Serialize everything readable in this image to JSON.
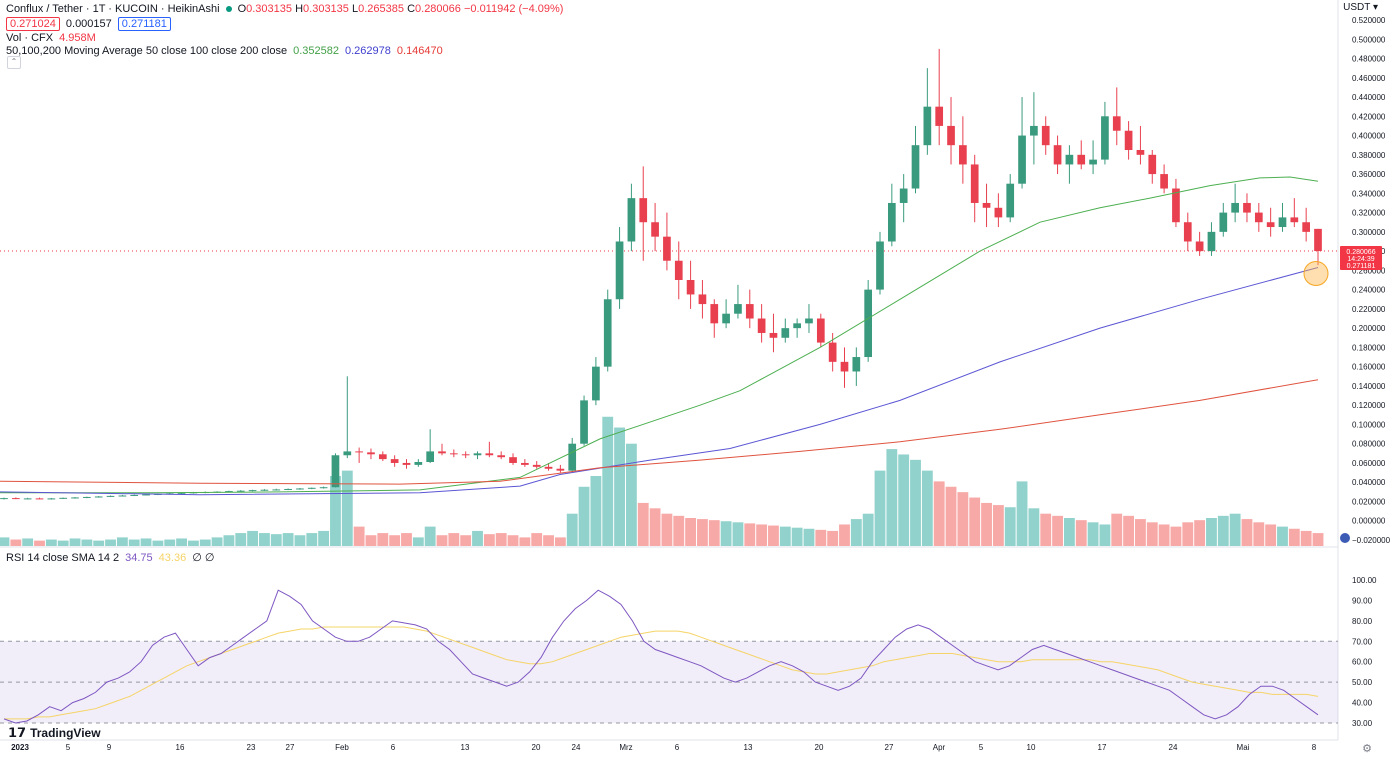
{
  "header": {
    "symbol": "Conflux / Tether · 1T · KUCOIN · HeikinAshi",
    "ohlc": {
      "o_label": "O",
      "o": "0.303135",
      "h_label": "H",
      "h": "0.303135",
      "l_label": "L",
      "l": "0.265385",
      "c_label": "C",
      "c": "0.280066",
      "change": "−0.011942 (−4.09%)"
    },
    "bid": "0.271024",
    "spread": "0.000157",
    "ask": "0.271181",
    "vol_label": "Vol · CFX",
    "vol_value": "4.958M",
    "ma_label": "50,100,200 Moving Average 50 close 100 close 200 close",
    "ma50": "0.352582",
    "ma100": "0.262978",
    "ma200": "0.146470",
    "currency": "USDT"
  },
  "rsi": {
    "label": "RSI 14 close SMA 14 2",
    "rsi_value": "34.75",
    "sma_value": "43.36",
    "extras": "∅ ∅"
  },
  "price_axis": [
    "0.520000",
    "0.500000",
    "0.480000",
    "0.460000",
    "0.440000",
    "0.420000",
    "0.400000",
    "0.380000",
    "0.360000",
    "0.340000",
    "0.320000",
    "0.300000",
    "0.280000",
    "0.260000",
    "0.240000",
    "0.220000",
    "0.200000",
    "0.180000",
    "0.160000",
    "0.140000",
    "0.120000",
    "0.100000",
    "0.080000",
    "0.060000",
    "0.040000",
    "0.020000",
    "0.000000",
    "−0.020000"
  ],
  "price_tags": [
    "0.280066",
    "14:24:39",
    "0.271181"
  ],
  "rsi_axis": [
    "100.00",
    "90.00",
    "80.00",
    "70.00",
    "60.00",
    "50.00",
    "40.00",
    "30.00"
  ],
  "time_axis": [
    "2023",
    "5",
    "9",
    "16",
    "23",
    "27",
    "Feb",
    "6",
    "13",
    "20",
    "24",
    "Mrz",
    "6",
    "13",
    "20",
    "27",
    "Apr",
    "5",
    "10",
    "17",
    "24",
    "Mai",
    "8"
  ],
  "branding": "TradingView",
  "colors": {
    "up": "#26a69a",
    "up_body": "#3a9a7e",
    "down": "#ef5350",
    "down_body": "#e8404f",
    "ma50": "#4caf50",
    "ma100": "#5b56d4",
    "ma200": "#e0533f",
    "rsi": "#7e57c2",
    "rsi_sma": "#f5d468"
  },
  "chart_data": {
    "type": "candlestick",
    "series": [
      {
        "name": "CFX/USDT HeikinAshi",
        "ohlc": [
          [
            0.023,
            0.024,
            0.022,
            0.0235
          ],
          [
            0.0235,
            0.0242,
            0.0225,
            0.023
          ],
          [
            0.023,
            0.0238,
            0.0222,
            0.0232
          ],
          [
            0.0232,
            0.024,
            0.0224,
            0.0228
          ],
          [
            0.0228,
            0.0236,
            0.022,
            0.0232
          ],
          [
            0.0232,
            0.024,
            0.0226,
            0.0238
          ],
          [
            0.0238,
            0.0246,
            0.023,
            0.0242
          ],
          [
            0.0242,
            0.025,
            0.0234,
            0.0247
          ],
          [
            0.0247,
            0.0256,
            0.024,
            0.0252
          ],
          [
            0.0252,
            0.0262,
            0.0246,
            0.0258
          ],
          [
            0.0258,
            0.0268,
            0.0252,
            0.0262
          ],
          [
            0.0262,
            0.0272,
            0.0256,
            0.0268
          ],
          [
            0.0268,
            0.0278,
            0.0262,
            0.0273
          ],
          [
            0.0273,
            0.0283,
            0.0266,
            0.0278
          ],
          [
            0.0278,
            0.029,
            0.027,
            0.0284
          ],
          [
            0.0284,
            0.0296,
            0.0276,
            0.029
          ],
          [
            0.029,
            0.03,
            0.0282,
            0.0295
          ],
          [
            0.0295,
            0.0304,
            0.0286,
            0.0298
          ],
          [
            0.0298,
            0.0306,
            0.029,
            0.0302
          ],
          [
            0.0302,
            0.0312,
            0.0295,
            0.0308
          ],
          [
            0.0308,
            0.0318,
            0.03,
            0.0312
          ],
          [
            0.0312,
            0.0322,
            0.0305,
            0.0318
          ],
          [
            0.0318,
            0.0328,
            0.031,
            0.0322
          ],
          [
            0.0322,
            0.0332,
            0.0314,
            0.0325
          ],
          [
            0.0325,
            0.0335,
            0.0318,
            0.033
          ],
          [
            0.033,
            0.034,
            0.0322,
            0.0335
          ],
          [
            0.0335,
            0.0345,
            0.0328,
            0.0342
          ],
          [
            0.0342,
            0.0355,
            0.0334,
            0.0348
          ],
          [
            0.0348,
            0.07,
            0.0345,
            0.068
          ],
          [
            0.068,
            0.15,
            0.065,
            0.072
          ],
          [
            0.072,
            0.076,
            0.06,
            0.071
          ],
          [
            0.071,
            0.075,
            0.064,
            0.069
          ],
          [
            0.069,
            0.072,
            0.062,
            0.064
          ],
          [
            0.064,
            0.068,
            0.056,
            0.06
          ],
          [
            0.06,
            0.064,
            0.054,
            0.058
          ],
          [
            0.058,
            0.064,
            0.056,
            0.061
          ],
          [
            0.061,
            0.095,
            0.06,
            0.072
          ],
          [
            0.072,
            0.08,
            0.068,
            0.07
          ],
          [
            0.07,
            0.074,
            0.066,
            0.069
          ],
          [
            0.069,
            0.072,
            0.065,
            0.068
          ],
          [
            0.068,
            0.072,
            0.064,
            0.07
          ],
          [
            0.07,
            0.082,
            0.066,
            0.068
          ],
          [
            0.068,
            0.072,
            0.064,
            0.066
          ],
          [
            0.066,
            0.07,
            0.058,
            0.06
          ],
          [
            0.06,
            0.064,
            0.056,
            0.058
          ],
          [
            0.058,
            0.062,
            0.054,
            0.056
          ],
          [
            0.056,
            0.06,
            0.052,
            0.054
          ],
          [
            0.054,
            0.058,
            0.05,
            0.052
          ],
          [
            0.052,
            0.086,
            0.051,
            0.08
          ],
          [
            0.08,
            0.13,
            0.078,
            0.125
          ],
          [
            0.125,
            0.17,
            0.12,
            0.16
          ],
          [
            0.16,
            0.24,
            0.155,
            0.23
          ],
          [
            0.23,
            0.305,
            0.22,
            0.29
          ],
          [
            0.29,
            0.35,
            0.28,
            0.335
          ],
          [
            0.335,
            0.368,
            0.27,
            0.31
          ],
          [
            0.31,
            0.33,
            0.28,
            0.295
          ],
          [
            0.295,
            0.32,
            0.26,
            0.27
          ],
          [
            0.27,
            0.29,
            0.23,
            0.25
          ],
          [
            0.25,
            0.27,
            0.22,
            0.235
          ],
          [
            0.235,
            0.25,
            0.21,
            0.225
          ],
          [
            0.225,
            0.23,
            0.19,
            0.205
          ],
          [
            0.205,
            0.23,
            0.2,
            0.215
          ],
          [
            0.215,
            0.245,
            0.21,
            0.225
          ],
          [
            0.225,
            0.24,
            0.2,
            0.21
          ],
          [
            0.21,
            0.225,
            0.185,
            0.195
          ],
          [
            0.195,
            0.215,
            0.175,
            0.19
          ],
          [
            0.19,
            0.21,
            0.185,
            0.2
          ],
          [
            0.2,
            0.21,
            0.19,
            0.205
          ],
          [
            0.205,
            0.225,
            0.195,
            0.21
          ],
          [
            0.21,
            0.215,
            0.18,
            0.185
          ],
          [
            0.185,
            0.195,
            0.155,
            0.165
          ],
          [
            0.165,
            0.18,
            0.138,
            0.155
          ],
          [
            0.155,
            0.18,
            0.14,
            0.17
          ],
          [
            0.17,
            0.25,
            0.165,
            0.24
          ],
          [
            0.24,
            0.3,
            0.235,
            0.29
          ],
          [
            0.29,
            0.35,
            0.285,
            0.33
          ],
          [
            0.33,
            0.36,
            0.31,
            0.345
          ],
          [
            0.345,
            0.41,
            0.34,
            0.39
          ],
          [
            0.39,
            0.47,
            0.38,
            0.43
          ],
          [
            0.43,
            0.49,
            0.39,
            0.41
          ],
          [
            0.41,
            0.44,
            0.37,
            0.39
          ],
          [
            0.39,
            0.42,
            0.35,
            0.37
          ],
          [
            0.37,
            0.38,
            0.31,
            0.33
          ],
          [
            0.33,
            0.35,
            0.305,
            0.325
          ],
          [
            0.325,
            0.34,
            0.305,
            0.315
          ],
          [
            0.315,
            0.36,
            0.31,
            0.35
          ],
          [
            0.35,
            0.44,
            0.345,
            0.4
          ],
          [
            0.4,
            0.445,
            0.37,
            0.41
          ],
          [
            0.41,
            0.42,
            0.38,
            0.39
          ],
          [
            0.39,
            0.4,
            0.36,
            0.37
          ],
          [
            0.37,
            0.39,
            0.35,
            0.38
          ],
          [
            0.38,
            0.395,
            0.365,
            0.37
          ],
          [
            0.37,
            0.395,
            0.36,
            0.375
          ],
          [
            0.375,
            0.435,
            0.37,
            0.42
          ],
          [
            0.42,
            0.45,
            0.39,
            0.405
          ],
          [
            0.405,
            0.415,
            0.375,
            0.385
          ],
          [
            0.385,
            0.41,
            0.37,
            0.38
          ],
          [
            0.38,
            0.385,
            0.35,
            0.36
          ],
          [
            0.36,
            0.37,
            0.34,
            0.345
          ],
          [
            0.345,
            0.355,
            0.305,
            0.31
          ],
          [
            0.31,
            0.32,
            0.28,
            0.29
          ],
          [
            0.29,
            0.3,
            0.275,
            0.28
          ],
          [
            0.28,
            0.31,
            0.275,
            0.3
          ],
          [
            0.3,
            0.33,
            0.295,
            0.32
          ],
          [
            0.32,
            0.35,
            0.31,
            0.33
          ],
          [
            0.33,
            0.34,
            0.31,
            0.32
          ],
          [
            0.32,
            0.33,
            0.3,
            0.31
          ],
          [
            0.31,
            0.325,
            0.295,
            0.305
          ],
          [
            0.305,
            0.33,
            0.3,
            0.315
          ],
          [
            0.315,
            0.335,
            0.305,
            0.31
          ],
          [
            0.31,
            0.325,
            0.29,
            0.3
          ],
          [
            0.3031,
            0.3031,
            0.2654,
            0.2801
          ]
        ]
      }
    ],
    "volume": [
      8,
      6,
      7,
      5,
      6,
      5,
      7,
      6,
      5,
      6,
      8,
      6,
      7,
      5,
      6,
      7,
      5,
      6,
      8,
      10,
      12,
      14,
      12,
      11,
      12,
      10,
      12,
      14,
      65,
      70,
      18,
      10,
      12,
      10,
      12,
      8,
      18,
      10,
      12,
      10,
      14,
      11,
      12,
      10,
      8,
      12,
      10,
      8,
      30,
      55,
      65,
      120,
      110,
      95,
      40,
      35,
      30,
      28,
      26,
      25,
      24,
      23,
      22,
      21,
      20,
      19,
      18,
      17,
      16,
      15,
      14,
      20,
      25,
      30,
      70,
      90,
      85,
      80,
      70,
      60,
      55,
      50,
      45,
      40,
      38,
      36,
      60,
      35,
      30,
      28,
      26,
      24,
      22,
      20,
      30,
      28,
      25,
      22,
      20,
      18,
      22,
      24,
      26,
      28,
      30,
      25,
      22,
      20,
      18,
      16,
      14,
      12,
      12,
      10,
      10,
      12
    ],
    "ma50_end": 0.352582,
    "ma100_end": 0.262978,
    "ma200_end": 0.14647,
    "rsi_series": [
      32,
      30,
      31,
      34,
      38,
      36,
      40,
      42,
      45,
      50,
      52,
      55,
      60,
      68,
      72,
      74,
      66,
      58,
      62,
      64,
      68,
      72,
      76,
      80,
      95,
      92,
      88,
      80,
      76,
      72,
      70,
      70,
      72,
      76,
      80,
      79,
      78,
      76,
      70,
      66,
      60,
      54,
      52,
      50,
      48,
      50,
      55,
      62,
      72,
      80,
      86,
      90,
      95,
      92,
      88,
      80,
      70,
      66,
      64,
      62,
      60,
      58,
      55,
      52,
      50,
      52,
      55,
      58,
      60,
      58,
      55,
      50,
      48,
      46,
      48,
      52,
      60,
      66,
      72,
      76,
      78,
      76,
      72,
      68,
      64,
      60,
      58,
      56,
      58,
      62,
      66,
      68,
      66,
      64,
      62,
      60,
      58,
      56,
      54,
      52,
      50,
      48,
      46,
      42,
      38,
      34,
      32,
      34,
      38,
      44,
      48,
      48,
      46,
      42,
      38,
      34
    ],
    "rsi_sma_series": [
      32,
      32,
      32,
      33,
      33,
      34,
      35,
      36,
      37,
      39,
      41,
      43,
      46,
      49,
      52,
      55,
      58,
      60,
      62,
      64,
      66,
      68,
      70,
      72,
      74,
      75,
      76,
      76,
      77,
      77,
      77,
      77,
      77,
      77,
      77,
      77,
      76,
      75,
      73,
      71,
      69,
      67,
      65,
      63,
      61,
      60,
      59,
      59,
      60,
      62,
      64,
      66,
      68,
      70,
      72,
      73,
      74,
      75,
      75,
      75,
      74,
      72,
      70,
      68,
      66,
      64,
      62,
      60,
      58,
      56,
      55,
      54,
      54,
      55,
      56,
      57,
      58,
      60,
      61,
      62,
      63,
      64,
      64,
      64,
      63,
      62,
      61,
      60,
      60,
      60,
      61,
      61,
      61,
      61,
      61,
      61,
      60,
      60,
      59,
      58,
      57,
      56,
      54,
      52,
      50,
      49,
      48,
      47,
      46,
      45,
      45,
      44,
      44,
      44,
      44,
      43
    ],
    "price_ylim": [
      -0.02,
      0.52
    ],
    "rsi_ylim": [
      30,
      100
    ],
    "rsi_band": [
      30,
      70
    ]
  }
}
